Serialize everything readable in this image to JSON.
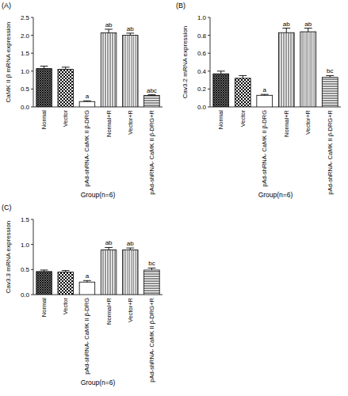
{
  "chart_data": [
    {
      "type": "bar",
      "title": "(A)",
      "y_label": "CaMK II β mRNA expression",
      "x_label": "Group(n=6)",
      "categories": [
        "Normal",
        "Vector",
        "pAd-shRNA- CaMK II β-DRG",
        "Normal+R",
        "Vector+R",
        "pAd-shRNA- CaMK II β-DRG+R"
      ],
      "values": [
        1.07,
        1.05,
        0.15,
        2.07,
        2.0,
        0.32
      ],
      "errors": [
        0.07,
        0.06,
        0.02,
        0.1,
        0.06,
        0.02
      ],
      "significance": [
        null,
        null,
        "a",
        "ab",
        "ab",
        "abc"
      ],
      "color": "#000000",
      "ylim": [
        0,
        2.5
      ],
      "yticks": [
        {
          "value": 0,
          "label": "0.0"
        },
        0.5,
        {
          "value": 1,
          "label": "1.0"
        },
        1.5,
        {
          "value": 2,
          "label": "2.0"
        },
        2.5
      ]
    },
    {
      "type": "bar",
      "title": "(B)",
      "y_label": "Cav3.2 mRNA expression",
      "x_label": "Group(n=6)",
      "categories": [
        "Normal",
        "Vector",
        "pAd-shRNA- CaMK II β-DRG",
        "Normal+R",
        "Vector+R",
        "pAd-shRNA- CaMK II β-DRG+R"
      ],
      "values": [
        0.37,
        0.32,
        0.13,
        0.83,
        0.84,
        0.33
      ],
      "errors": [
        0.03,
        0.03,
        0.01,
        0.05,
        0.04,
        0.02
      ],
      "significance": [
        null,
        null,
        "a",
        "ab",
        "ab",
        "bc"
      ],
      "color": "#000000",
      "ylim": [
        0,
        1
      ],
      "yticks": [
        {
          "value": 0,
          "label": "0.0"
        },
        0.2,
        0.4,
        0.6,
        0.8,
        {
          "value": 1,
          "label": "1.0"
        }
      ]
    },
    {
      "type": "bar",
      "title": "(C)",
      "y_label": "Cav3.3 mRNA expression",
      "x_label": "Group(n=6)",
      "categories": [
        "Normal",
        "Vector",
        "pAd-shRNA- CaMK II β-DRG",
        "Normal+R",
        "Vector+R",
        "pAd-shRNA- CaMK II β-DRG+R"
      ],
      "values": [
        0.46,
        0.45,
        0.25,
        0.89,
        0.89,
        0.49
      ],
      "errors": [
        0.03,
        0.03,
        0.03,
        0.05,
        0.04,
        0.04
      ],
      "significance": [
        null,
        null,
        "a",
        "ab",
        "ab",
        "bc"
      ],
      "color": "#000000",
      "ylim": [
        0,
        1.5
      ],
      "yticks": [
        {
          "value": 0,
          "label": "0.0"
        },
        0.5,
        {
          "value": 1,
          "label": "1.0"
        },
        1.5
      ]
    }
  ]
}
